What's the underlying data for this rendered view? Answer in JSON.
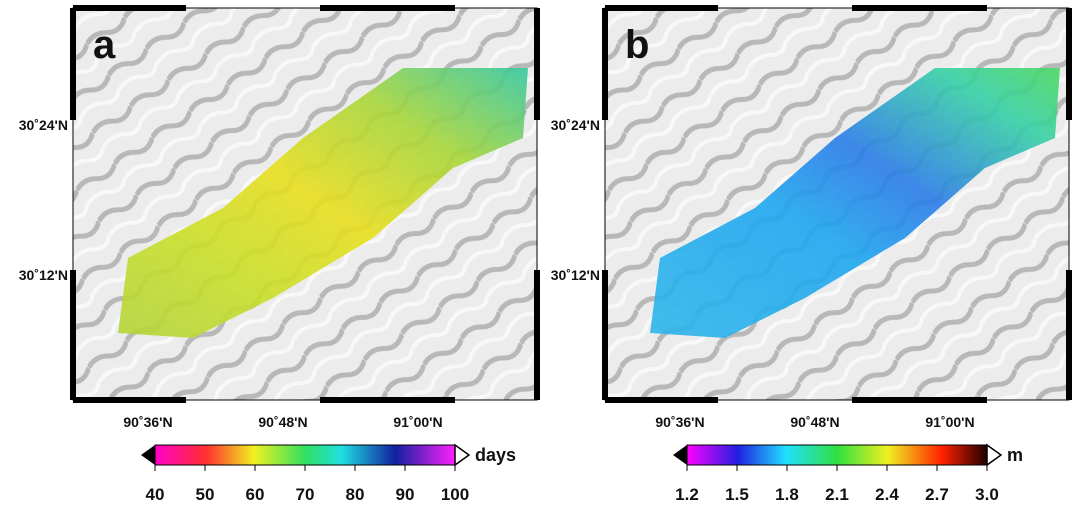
{
  "panels": [
    {
      "label": "a",
      "lat_labels": [
        "30˚24'N",
        "30˚12'N"
      ],
      "lon_labels": [
        "90˚36'N",
        "90˚48'N",
        "91˚00'N"
      ],
      "colorbar": {
        "unit": "days",
        "ticks": [
          "40",
          "50",
          "60",
          "70",
          "80",
          "90",
          "100"
        ]
      }
    },
    {
      "label": "b",
      "lat_labels": [
        "30˚24'N",
        "30˚12'N"
      ],
      "lon_labels": [
        "90˚36'N",
        "90˚48'N",
        "91˚00'N"
      ],
      "colorbar": {
        "unit": "m",
        "ticks": [
          "1.2",
          "1.5",
          "1.8",
          "2.1",
          "2.4",
          "2.7",
          "3.0"
        ]
      }
    }
  ]
}
